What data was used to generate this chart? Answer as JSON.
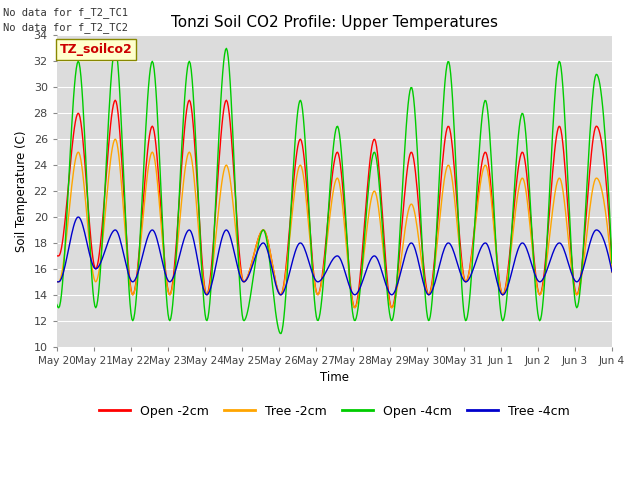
{
  "title": "Tonzi Soil CO2 Profile: Upper Temperatures",
  "ylabel": "Soil Temperature (C)",
  "xlabel": "Time",
  "no_data_text_1": "No data for f_T2_TC1",
  "no_data_text_2": "No data for f_T2_TC2",
  "legend_label_text": "TZ_soilco2",
  "ylim": [
    10,
    34
  ],
  "bg_color": "#dcdcdc",
  "series_colors": [
    "#ff0000",
    "#ffa500",
    "#00cc00",
    "#0000cc"
  ],
  "series_labels": [
    "Open -2cm",
    "Tree -2cm",
    "Open -4cm",
    "Tree -4cm"
  ],
  "x_tick_labels": [
    "May 20",
    "May 21",
    "May 22",
    "May 23",
    "May 24",
    "May 25",
    "May 26",
    "May 27",
    "May 28",
    "May 29",
    "May 30",
    "May 31",
    "Jun 1",
    "Jun 2",
    "Jun 3",
    "Jun 4"
  ],
  "yticks": [
    10,
    12,
    14,
    16,
    18,
    20,
    22,
    24,
    26,
    28,
    30,
    32,
    34
  ],
  "figsize": [
    6.4,
    4.8
  ],
  "dpi": 100
}
